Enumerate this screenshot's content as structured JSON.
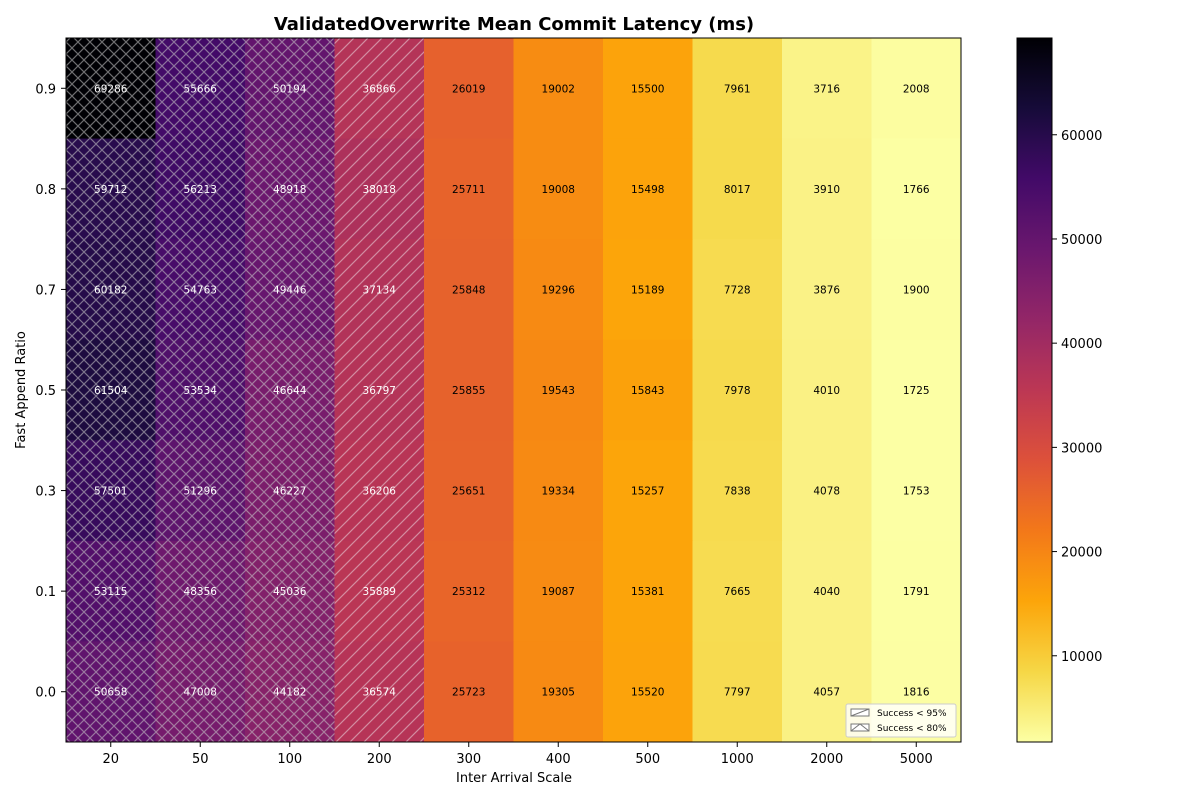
{
  "chart_data": {
    "type": "heatmap",
    "title": "ValidatedOverwrite Mean Commit Latency (ms)",
    "xlabel": "Inter Arrival Scale",
    "ylabel": "Fast Append Ratio",
    "x": [
      "20",
      "50",
      "100",
      "200",
      "300",
      "400",
      "500",
      "1000",
      "2000",
      "5000"
    ],
    "y": [
      "0.9",
      "0.8",
      "0.7",
      "0.5",
      "0.3",
      "0.1",
      "0.0"
    ],
    "values": [
      [
        69286,
        55666,
        50194,
        36866,
        26019,
        19002,
        15500,
        7961,
        3716,
        2008
      ],
      [
        59712,
        56213,
        48918,
        38018,
        25711,
        19008,
        15498,
        8017,
        3910,
        1766
      ],
      [
        60182,
        54763,
        49446,
        37134,
        25848,
        19296,
        15189,
        7728,
        3876,
        1900
      ],
      [
        61504,
        53534,
        46644,
        36797,
        25855,
        19543,
        15843,
        7978,
        4010,
        1725
      ],
      [
        57501,
        51296,
        46227,
        36206,
        25651,
        19334,
        15257,
        7838,
        4078,
        1753
      ],
      [
        53115,
        48356,
        45036,
        35889,
        25312,
        19087,
        15381,
        7665,
        4040,
        1791
      ],
      [
        50658,
        47008,
        44182,
        36574,
        25723,
        19305,
        15520,
        7797,
        4057,
        1816
      ]
    ],
    "hatch_by_column": [
      "x",
      "x",
      "x",
      "/",
      "",
      "",
      "",
      "",
      "",
      ""
    ],
    "colormap": "inferno_r",
    "colorbar": {
      "range": [
        1725,
        69286
      ],
      "ticks": [
        10000,
        20000,
        30000,
        40000,
        50000,
        60000
      ],
      "tick_labels": [
        "10000",
        "20000",
        "30000",
        "40000",
        "50000",
        "60000"
      ]
    },
    "legend": {
      "placement": "lower-right",
      "entries": [
        {
          "label": "Success < 95%",
          "hatch": "/"
        },
        {
          "label": "Success < 80%",
          "hatch": "x"
        }
      ]
    }
  }
}
